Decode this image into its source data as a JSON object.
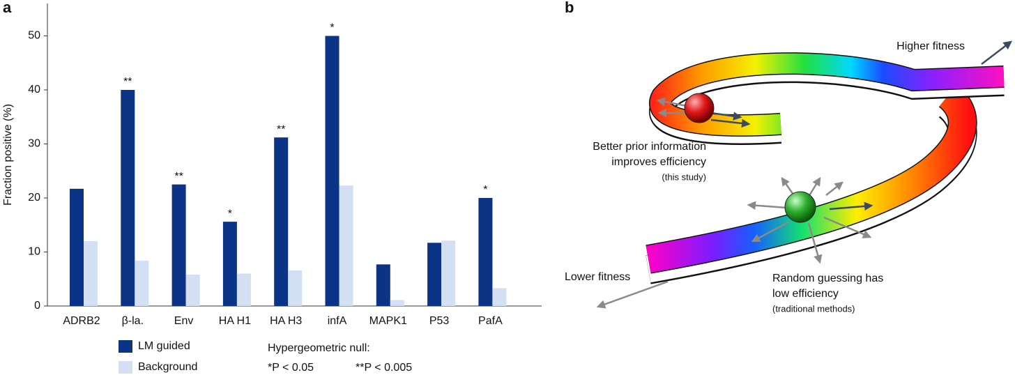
{
  "chart_data": {
    "type": "bar",
    "panel_label": "a",
    "ylabel": "Fraction positive (%)",
    "categories": [
      "ADRB2",
      "β-la.",
      "Env",
      "HA H1",
      "HA H3",
      "infA",
      "MAPK1",
      "P53",
      "PafA"
    ],
    "series": [
      {
        "name": "LM guided",
        "color": "#0b3386",
        "values": [
          21.7,
          40,
          22.5,
          15.6,
          31.2,
          50,
          7.7,
          11.7,
          20
        ]
      },
      {
        "name": "Background",
        "color": "#d3dff3",
        "values": [
          12,
          8.4,
          5.8,
          6,
          6.6,
          22.3,
          1.1,
          12.1,
          3.3
        ]
      }
    ],
    "annotations": [
      null,
      "**",
      "**",
      "*",
      "**",
      "*",
      null,
      null,
      "*"
    ],
    "note_title": "Hypergeometric null:",
    "notes": [
      "*P < 0.05",
      "**P < 0.005"
    ],
    "ylim": [
      0,
      56
    ],
    "yticks": [
      0,
      10,
      20,
      30,
      40,
      50
    ],
    "grid": false
  },
  "diagram": {
    "panel_label": "b",
    "higher": "Higher fitness",
    "lower": "Lower fitness",
    "prior": [
      "Better prior information",
      "improves efficiency",
      "(this study)"
    ],
    "random": [
      "Random guessing has",
      "low efficiency",
      "(traditional methods)"
    ]
  }
}
